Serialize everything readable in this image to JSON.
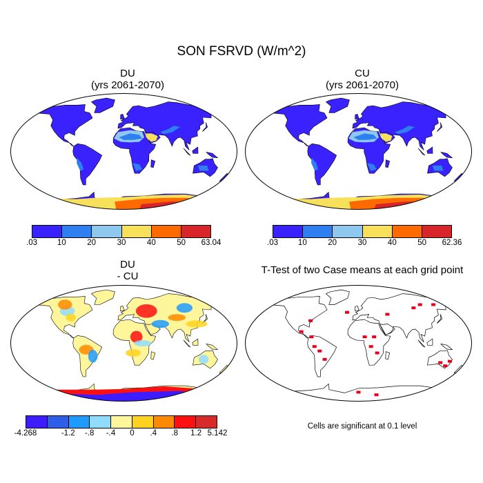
{
  "title": "SON FSRVD (W/m^2)",
  "panels": [
    {
      "id": "du",
      "title_line1": "DU",
      "title_line2": "(yrs 2061-2070)"
    },
    {
      "id": "cu",
      "title_line1": "CU",
      "title_line2": "(yrs 2061-2070)"
    },
    {
      "id": "diff",
      "title_line1": "DU",
      "title_line2": "- CU"
    },
    {
      "id": "ttest",
      "title_line1": "T-Test of two Case means at each grid point",
      "title_line2": ""
    }
  ],
  "colorbars": [
    {
      "id": "du",
      "colors": [
        "#3a22ff",
        "#2f7ff0",
        "#8fc8ee",
        "#f7e05a",
        "#ff6a00",
        "#d7252a"
      ],
      "labels": [
        ".03",
        "10",
        "20",
        "30",
        "40",
        "50",
        "63.04"
      ]
    },
    {
      "id": "cu",
      "colors": [
        "#3a22ff",
        "#2f7ff0",
        "#8fc8ee",
        "#f7e05a",
        "#ff6a00",
        "#d7252a"
      ],
      "labels": [
        ".03",
        "10",
        "20",
        "30",
        "40",
        "50",
        "62.36"
      ]
    },
    {
      "id": "diff",
      "colors": [
        "#3d1cff",
        "#2e5fe8",
        "#1f9bff",
        "#8fdcff",
        "#fff59a",
        "#ffd21f",
        "#ff8a00",
        "#ff1010",
        "#d72a2a"
      ],
      "labels": [
        "-4.268",
        "",
        "-1.2",
        "-.8",
        "-.4",
        "0",
        ".4",
        ".8",
        "1.2",
        "5.142"
      ]
    }
  ],
  "significance_note": "Cells are significant at 0.1 level",
  "colors": {
    "ocean": "#ffffff",
    "land_low": "#3a22ff",
    "significant": "#e4001a",
    "coast": "#000000"
  }
}
